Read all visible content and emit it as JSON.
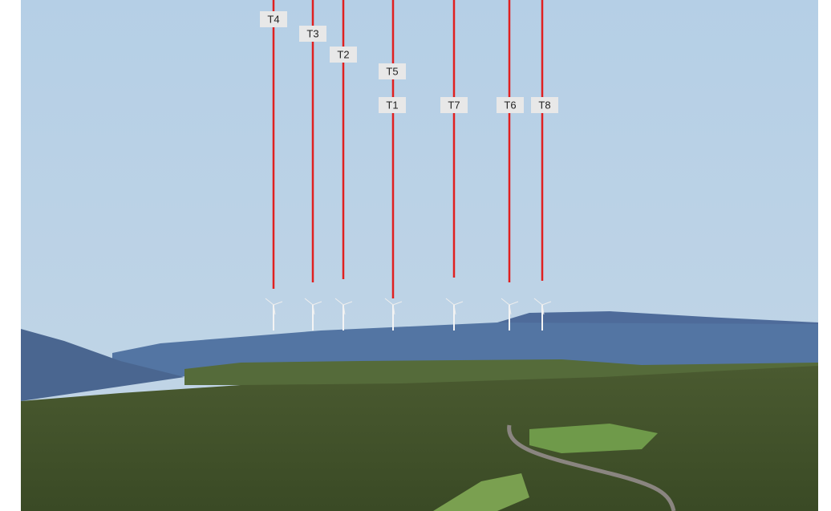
{
  "labels": [
    {
      "text": "T4"
    },
    {
      "text": "T3"
    },
    {
      "text": "T2"
    },
    {
      "text": "T5"
    },
    {
      "text": "T1"
    },
    {
      "text": "T7"
    },
    {
      "text": "T6"
    },
    {
      "text": "T8"
    }
  ]
}
